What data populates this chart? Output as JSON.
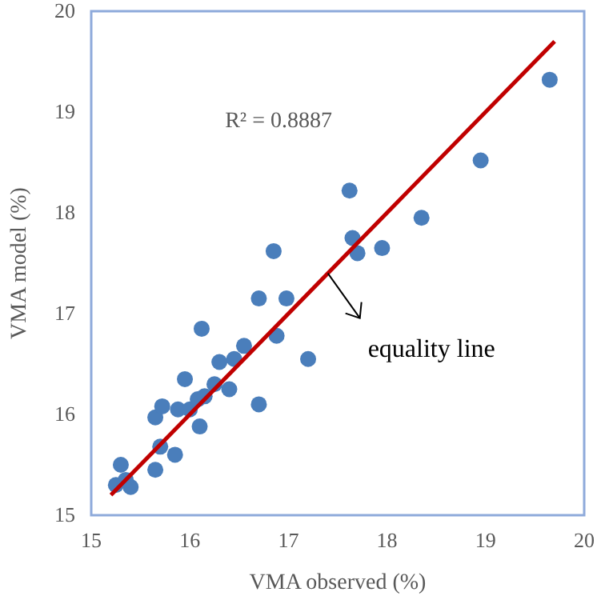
{
  "chart_data": {
    "type": "scatter",
    "xlabel": "VMA observed (%)",
    "ylabel": "VMA model (%)",
    "xlim": [
      15,
      20
    ],
    "ylim": [
      15,
      20
    ],
    "xticks": [
      15,
      16,
      17,
      18,
      19,
      20
    ],
    "yticks": [
      15,
      16,
      17,
      18,
      19,
      20
    ],
    "grid": false,
    "series": [
      {
        "marker": "circle",
        "color": "#4a7ebb",
        "x": [
          15.25,
          15.3,
          15.4,
          15.35,
          15.65,
          15.7,
          15.85,
          15.65,
          15.72,
          15.88,
          15.95,
          16.0,
          16.1,
          16.08,
          16.15,
          16.12,
          16.25,
          16.3,
          16.4,
          16.45,
          16.55,
          16.7,
          16.7,
          16.85,
          16.88,
          16.98,
          17.2,
          17.62,
          17.65,
          17.7,
          17.95,
          18.35,
          18.95,
          19.65
        ],
        "values": [
          15.3,
          15.5,
          15.28,
          15.35,
          15.45,
          15.68,
          15.6,
          15.97,
          16.08,
          16.05,
          16.35,
          16.05,
          15.88,
          16.15,
          16.18,
          16.85,
          16.3,
          16.52,
          16.25,
          16.55,
          16.68,
          16.1,
          17.15,
          17.62,
          16.78,
          17.15,
          16.55,
          18.22,
          17.75,
          17.6,
          17.65,
          17.95,
          18.52,
          19.32
        ]
      },
      {
        "type": "line",
        "marker": "none",
        "color": "#c00000",
        "x": [
          15.2,
          19.7
        ],
        "values": [
          15.2,
          19.7
        ]
      }
    ],
    "annotations": [
      "R² = 0.8887",
      {
        "text": "equality line",
        "x": 17.4,
        "y": 17.4
      }
    ]
  }
}
